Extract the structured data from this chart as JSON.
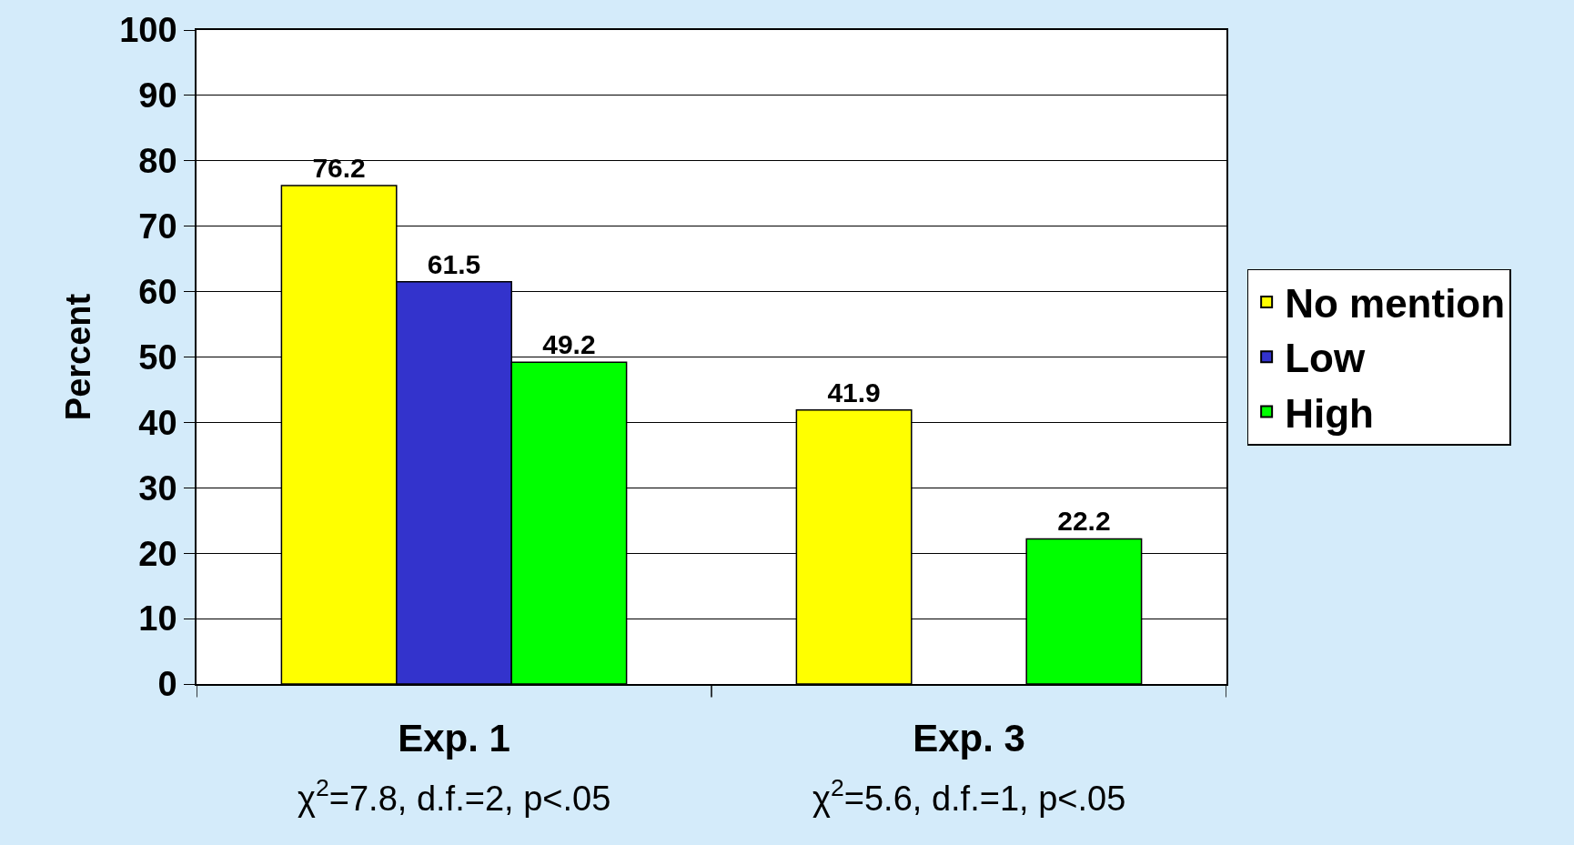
{
  "chart_data": {
    "type": "bar",
    "ylabel": "Percent",
    "categories": [
      "Exp. 1",
      "Exp. 3"
    ],
    "series": [
      {
        "name": "No mention",
        "color": "#ffff00",
        "values": [
          76.2,
          41.9
        ]
      },
      {
        "name": "Low",
        "color": "#3333cc",
        "values": [
          61.5,
          null
        ]
      },
      {
        "name": "High",
        "color": "#00ff00",
        "values": [
          49.2,
          22.2
        ]
      }
    ],
    "ylim": [
      0,
      100
    ],
    "yticks": [
      0,
      10,
      20,
      30,
      40,
      50,
      60,
      70,
      80,
      90,
      100
    ],
    "grid": "y",
    "legend": "right",
    "data_labels": true,
    "annotations": [
      "χ$^{2}$=7.8, d.f.=2, p<.05",
      "χ$^{2}$=5.6, d.f.=1, p<.05"
    ]
  }
}
